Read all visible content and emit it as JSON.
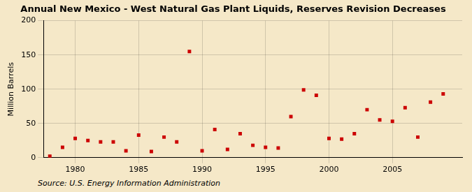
{
  "chart_data": {
    "type": "scatter",
    "title": "Annual New Mexico - West Natural Gas Plant Liquids, Reserves Revision Decreases",
    "ylabel": "Million Barrels",
    "annotation": "Source: U.S. Energy Information Administration",
    "x": [
      1978,
      1979,
      1980,
      1981,
      1982,
      1983,
      1984,
      1985,
      1986,
      1987,
      1988,
      1989,
      1990,
      1991,
      1992,
      1993,
      1994,
      1995,
      1996,
      1997,
      1998,
      1999,
      2000,
      2001,
      2002,
      2003,
      2004,
      2005,
      2006,
      2007,
      2008,
      2009
    ],
    "values": [
      2,
      15,
      28,
      25,
      23,
      23,
      10,
      33,
      9,
      30,
      23,
      155,
      10,
      41,
      12,
      35,
      18,
      15,
      14,
      60,
      99,
      91,
      28,
      27,
      35,
      70,
      55,
      53,
      73,
      30,
      81,
      93
    ],
    "color": "#cc0000",
    "marker": "square",
    "xlim": [
      1977.5,
      2010.5
    ],
    "xticks": [
      1980,
      1985,
      1990,
      1995,
      2000,
      2005
    ],
    "ylim": [
      0,
      200
    ],
    "yticks": [
      0,
      50,
      100,
      150,
      200
    ],
    "grid": true
  }
}
